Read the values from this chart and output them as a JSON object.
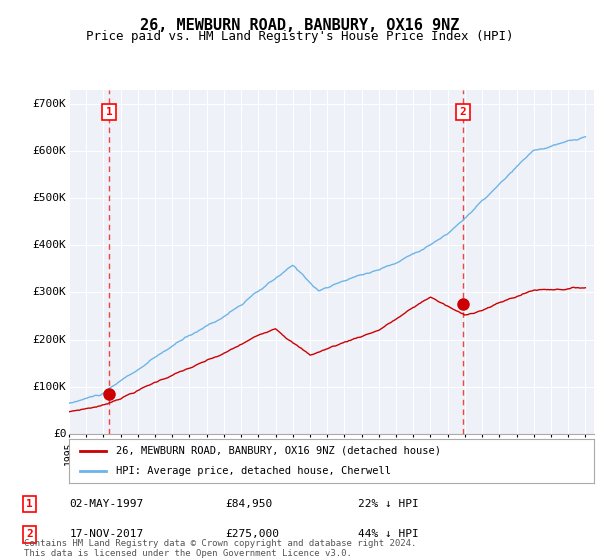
{
  "title": "26, MEWBURN ROAD, BANBURY, OX16 9NZ",
  "subtitle": "Price paid vs. HM Land Registry's House Price Index (HPI)",
  "title_fontsize": 11,
  "subtitle_fontsize": 9,
  "ylabel_ticks": [
    "£0",
    "£100K",
    "£200K",
    "£300K",
    "£400K",
    "£500K",
    "£600K",
    "£700K"
  ],
  "ytick_values": [
    0,
    100000,
    200000,
    300000,
    400000,
    500000,
    600000,
    700000
  ],
  "ylim": [
    0,
    730000
  ],
  "xlim_start": 1995.0,
  "xlim_end": 2025.5,
  "marker1_x": 1997.33,
  "marker1_y": 84950,
  "marker2_x": 2017.88,
  "marker2_y": 275000,
  "legend_line1": "26, MEWBURN ROAD, BANBURY, OX16 9NZ (detached house)",
  "legend_line2": "HPI: Average price, detached house, Cherwell",
  "annotation1_num": "1",
  "annotation1_date": "02-MAY-1997",
  "annotation1_price": "£84,950",
  "annotation1_hpi": "22% ↓ HPI",
  "annotation2_num": "2",
  "annotation2_date": "17-NOV-2017",
  "annotation2_price": "£275,000",
  "annotation2_hpi": "44% ↓ HPI",
  "footer": "Contains HM Land Registry data © Crown copyright and database right 2024.\nThis data is licensed under the Open Government Licence v3.0.",
  "hpi_color": "#6eb4e8",
  "price_color": "#cc0000",
  "dashed_line_color": "#ee4444",
  "plot_bg_color": "#eef2f8"
}
